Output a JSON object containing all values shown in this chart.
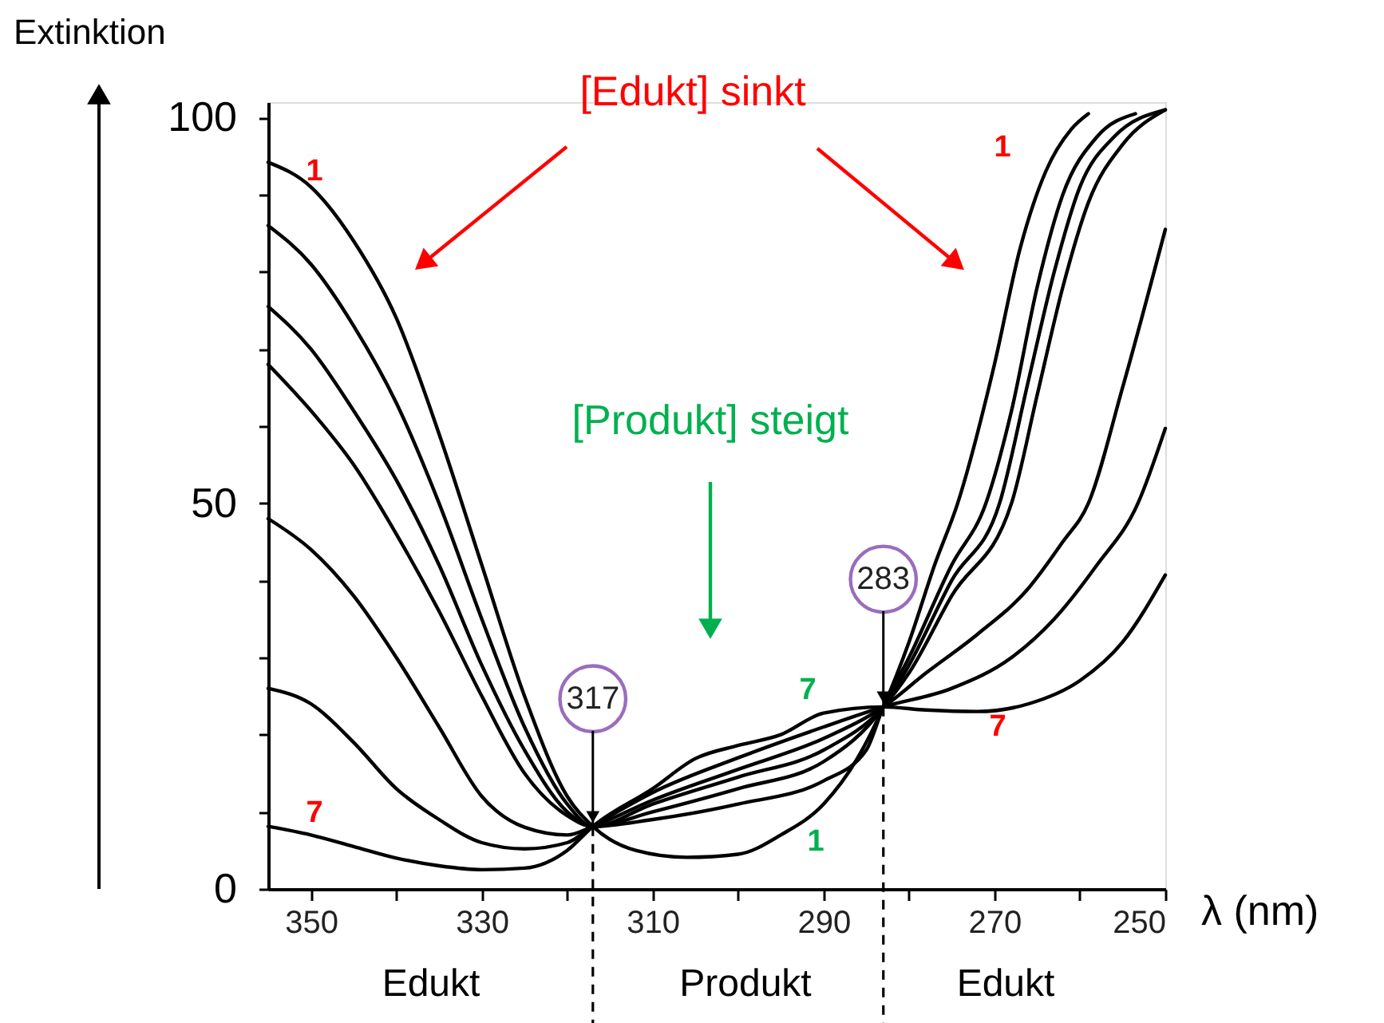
{
  "chart_data": {
    "type": "line",
    "xlabel": "λ (nm)",
    "ylabel": "Extinktion",
    "xlim": [
      355,
      250
    ],
    "ylim": [
      0,
      102
    ],
    "xticks": [
      350,
      {
        "value": 340,
        "label": null
      },
      330,
      {
        "value": 320,
        "label": null
      },
      310,
      {
        "value": 300,
        "label": null
      },
      290,
      {
        "value": 280,
        "label": null
      },
      270,
      {
        "value": 260,
        "label": null
      },
      250
    ],
    "yticks": [
      0,
      {
        "value": 10,
        "label": null
      },
      {
        "value": 20,
        "label": null
      },
      {
        "value": 30,
        "label": null
      },
      {
        "value": 40,
        "label": null
      },
      50,
      {
        "value": 60,
        "label": null
      },
      {
        "value": 70,
        "label": null
      },
      {
        "value": 80,
        "label": null
      },
      {
        "value": 90,
        "label": null
      },
      100
    ],
    "grid": false,
    "series": [
      {
        "color": "#000000",
        "x": [
          355,
          350,
          345,
          340,
          335,
          330,
          325,
          320,
          317,
          312,
          306,
          300,
          295,
          290,
          286,
          283,
          280,
          277,
          274.3,
          270,
          267,
          264,
          261,
          259
        ],
        "values": [
          94.2,
          91,
          84,
          74,
          59,
          42,
          25,
          12,
          8.1,
          5,
          4.1,
          4.5,
          7,
          11,
          17,
          23.6,
          32,
          42,
          50,
          68,
          83,
          93,
          98.5,
          100.5
        ]
      },
      {
        "color": "#000000",
        "x": [
          355,
          350,
          345,
          340,
          335,
          330,
          325,
          320,
          317,
          310,
          300,
          290,
          285,
          283,
          280,
          275,
          271,
          268,
          265,
          262,
          258,
          253.5
        ],
        "values": [
          86,
          81,
          73,
          63,
          50,
          35,
          21,
          11,
          8.1,
          9,
          11,
          14,
          18,
          23.6,
          30,
          42,
          50,
          62,
          78,
          90,
          97.5,
          100.5
        ]
      },
      {
        "color": "#000000",
        "x": [
          355,
          350,
          345,
          340,
          335,
          330,
          325,
          320,
          317,
          310,
          300,
          290,
          283,
          280,
          275,
          269.4,
          266,
          263,
          260,
          256,
          250
        ],
        "values": [
          75.5,
          70,
          62,
          53,
          42,
          29,
          18,
          10,
          8.1,
          10,
          13,
          16.5,
          23.6,
          29,
          40,
          50,
          66,
          80,
          91,
          97.5,
          101
        ]
      },
      {
        "color": "#000000",
        "x": [
          355,
          350,
          345,
          340,
          335,
          330,
          325,
          320,
          317,
          310,
          300,
          290,
          283,
          280,
          275,
          268,
          265,
          262,
          259,
          255,
          250
        ],
        "values": [
          68,
          62,
          55,
          46,
          36,
          25,
          15,
          9.5,
          8.1,
          11,
          14.5,
          18,
          23.6,
          28,
          38,
          50,
          64,
          78,
          89,
          96.5,
          101
        ]
      },
      {
        "color": "#000000",
        "x": [
          355,
          350,
          345,
          340,
          335,
          330,
          325,
          320,
          317,
          310,
          300,
          290,
          283,
          278,
          272,
          266,
          262,
          259,
          255,
          250
        ],
        "values": [
          48,
          44,
          38,
          30,
          21,
          12,
          8,
          7,
          8.1,
          11.5,
          15.5,
          19.5,
          23.6,
          28,
          33,
          39,
          45,
          50,
          65,
          85.5
        ]
      },
      {
        "color": "#000000",
        "x": [
          355,
          350,
          345,
          340,
          335,
          330,
          325,
          320,
          317,
          310,
          300,
          290,
          283,
          275,
          268,
          263,
          258,
          253.2,
          250
        ],
        "values": [
          26,
          24,
          19,
          13,
          9,
          6,
          5.2,
          6,
          8.1,
          12.5,
          17,
          21,
          23.6,
          26,
          30,
          35,
          42,
          50,
          59.7
        ]
      },
      {
        "color": "#000000",
        "x": [
          355,
          350,
          345,
          340,
          335,
          330,
          325,
          320,
          317,
          310,
          305,
          300,
          295,
          290,
          283,
          278,
          272,
          266,
          260,
          255,
          250
        ],
        "values": [
          8.1,
          7,
          5.5,
          4,
          3,
          2.5,
          2.7,
          5,
          8.1,
          13,
          16.9,
          18.6,
          20,
          22.8,
          23.6,
          23.2,
          23,
          24,
          27,
          32,
          40.7
        ]
      }
    ],
    "ref_lines": [
      {
        "axis": "x",
        "value": 317,
        "line_style": "dashed",
        "color": "#000000"
      },
      {
        "axis": "x",
        "value": 283,
        "line_style": "dashed",
        "color": "#000000"
      }
    ],
    "annotations": [
      "[Edukt]  sinkt",
      "[Produkt]  steigt",
      "1",
      "7",
      "1",
      "7",
      "7",
      "1",
      {
        "text": "317",
        "x": 317,
        "y": 8.1
      },
      {
        "text": "283",
        "x": 283,
        "y": 23.6
      },
      "Edukt",
      "Produkt",
      "Edukt"
    ]
  }
}
